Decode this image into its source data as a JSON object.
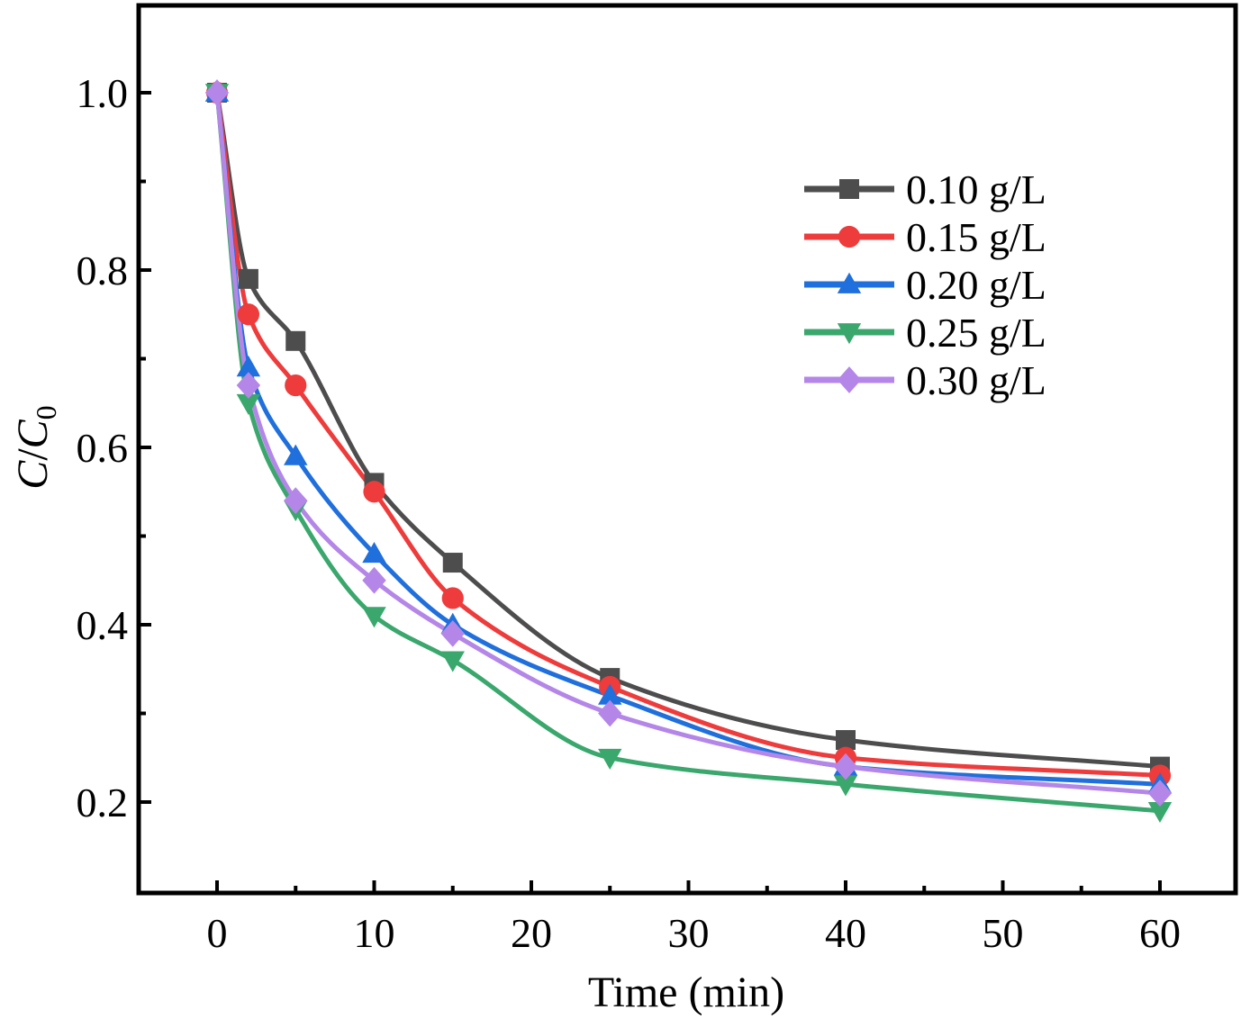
{
  "chart_data": {
    "type": "line",
    "title": "",
    "xlabel": "Time (min)",
    "ylabel": {
      "c": "C",
      "slash": "/",
      "c0": "C",
      "sub": "0"
    },
    "xlim": [
      -5,
      64
    ],
    "ylim": [
      0.1,
      1.1
    ],
    "xticks": [
      0,
      10,
      20,
      30,
      40,
      50,
      60
    ],
    "xtick_labels": [
      "0",
      "10",
      "20",
      "30",
      "40",
      "50",
      "60"
    ],
    "yticks": [
      0.2,
      0.4,
      0.6,
      0.8,
      1.0
    ],
    "ytick_labels": [
      "0.2",
      "0.4",
      "0.6",
      "0.8",
      "1.0"
    ],
    "legend_position": "top-right",
    "series": [
      {
        "name": "0.10 g/L",
        "color": "#4d4d4d",
        "marker": "square",
        "x": [
          0,
          2,
          5,
          10,
          15,
          25,
          40,
          60
        ],
        "values": [
          1.0,
          0.79,
          0.72,
          0.56,
          0.47,
          0.34,
          0.27,
          0.24
        ]
      },
      {
        "name": "0.15 g/L",
        "color": "#ee3b3b",
        "marker": "circle",
        "x": [
          0,
          2,
          5,
          10,
          15,
          25,
          40,
          60
        ],
        "values": [
          1.0,
          0.75,
          0.67,
          0.55,
          0.43,
          0.33,
          0.25,
          0.23
        ]
      },
      {
        "name": "0.20 g/L",
        "color": "#1f6fdc",
        "marker": "triangle-up",
        "x": [
          0,
          2,
          5,
          10,
          15,
          25,
          40,
          60
        ],
        "values": [
          1.0,
          0.69,
          0.59,
          0.48,
          0.4,
          0.32,
          0.24,
          0.22
        ]
      },
      {
        "name": "0.25 g/L",
        "color": "#3aa76d",
        "marker": "triangle-down",
        "x": [
          0,
          2,
          5,
          10,
          15,
          25,
          40,
          60
        ],
        "values": [
          1.0,
          0.65,
          0.53,
          0.41,
          0.36,
          0.25,
          0.22,
          0.19
        ]
      },
      {
        "name": "0.30 g/L",
        "color": "#b486e8",
        "marker": "diamond",
        "x": [
          0,
          2,
          5,
          10,
          15,
          25,
          40,
          60
        ],
        "values": [
          1.0,
          0.67,
          0.54,
          0.45,
          0.39,
          0.3,
          0.24,
          0.21
        ]
      }
    ]
  }
}
